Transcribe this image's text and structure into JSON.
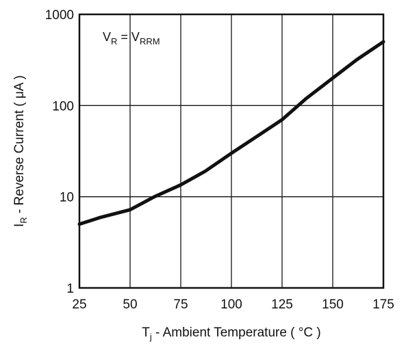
{
  "chart_data": {
    "type": "line",
    "x_scale": "linear",
    "y_scale": "log",
    "xlim": [
      25,
      175
    ],
    "ylim": [
      1,
      1000
    ],
    "x_ticks": [
      25,
      50,
      75,
      100,
      125,
      150,
      175
    ],
    "y_ticks": [
      1,
      10,
      100,
      1000
    ],
    "x_tick_labels": [
      "25",
      "50",
      "75",
      "100",
      "125",
      "150",
      "175"
    ],
    "y_tick_labels": [
      "1",
      "10",
      "100",
      "1000"
    ],
    "grid": true,
    "xlabel": {
      "main": "T",
      "sub": "j",
      "rest": " - Ambient Temperature ( °C )"
    },
    "ylabel": {
      "main": "I",
      "sub": "R",
      "rest": " - Reverse Current ( μA )"
    },
    "annotation": {
      "v1": "V",
      "v1_sub": "R",
      "eq": " = V",
      "v2_sub": "RRM"
    },
    "series": [
      {
        "color": "#111111",
        "x": [
          25,
          35,
          50,
          62,
          75,
          87,
          100,
          112,
          125,
          137,
          150,
          162,
          175
        ],
        "y": [
          5,
          5.9,
          7.2,
          10,
          13.5,
          19,
          30,
          45,
          70,
          120,
          200,
          320,
          500
        ]
      }
    ]
  }
}
